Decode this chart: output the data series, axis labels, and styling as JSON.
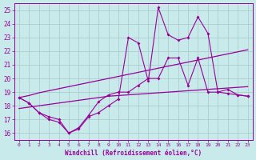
{
  "x": [
    0,
    1,
    2,
    3,
    4,
    5,
    6,
    7,
    8,
    9,
    10,
    11,
    12,
    13,
    14,
    15,
    16,
    17,
    18,
    19,
    20,
    21,
    22,
    23
  ],
  "line_jagged1": [
    18.6,
    18.2,
    17.5,
    17.0,
    16.8,
    16.0,
    16.3,
    17.2,
    17.5,
    18.0,
    18.5,
    23.0,
    22.6,
    19.8,
    25.2,
    23.2,
    22.8,
    23.0,
    24.5,
    23.3,
    19.0,
    18.9,
    18.8,
    18.7
  ],
  "line_jagged2": [
    18.6,
    18.2,
    17.5,
    17.2,
    17.0,
    16.0,
    16.4,
    17.3,
    18.3,
    18.8,
    19.0,
    19.0,
    19.5,
    20.0,
    20.0,
    21.5,
    21.5,
    19.5,
    21.5,
    19.0,
    19.0,
    19.2,
    18.8,
    18.7
  ],
  "line_trend1": [
    18.6,
    18.75,
    18.95,
    19.1,
    19.25,
    19.4,
    19.55,
    19.7,
    19.85,
    20.0,
    20.15,
    20.3,
    20.45,
    20.6,
    20.75,
    20.9,
    21.05,
    21.2,
    21.35,
    21.5,
    21.65,
    21.8,
    21.95,
    22.1
  ],
  "line_trend2": [
    17.8,
    17.9,
    18.0,
    18.1,
    18.2,
    18.3,
    18.4,
    18.5,
    18.6,
    18.7,
    18.75,
    18.8,
    18.85,
    18.9,
    18.95,
    19.0,
    19.05,
    19.1,
    19.15,
    19.2,
    19.25,
    19.3,
    19.35,
    19.4
  ],
  "line_color": "#990099",
  "bg_color": "#c8eaea",
  "grid_color": "#a8c8c8",
  "xlabel": "Windchill (Refroidissement éolien,°C)",
  "ylim": [
    15.5,
    25.5
  ],
  "xlim": [
    -0.5,
    23.5
  ],
  "yticks": [
    16,
    17,
    18,
    19,
    20,
    21,
    22,
    23,
    24,
    25
  ],
  "xticks": [
    0,
    1,
    2,
    3,
    4,
    5,
    6,
    7,
    8,
    9,
    10,
    11,
    12,
    13,
    14,
    15,
    16,
    17,
    18,
    19,
    20,
    21,
    22,
    23
  ]
}
